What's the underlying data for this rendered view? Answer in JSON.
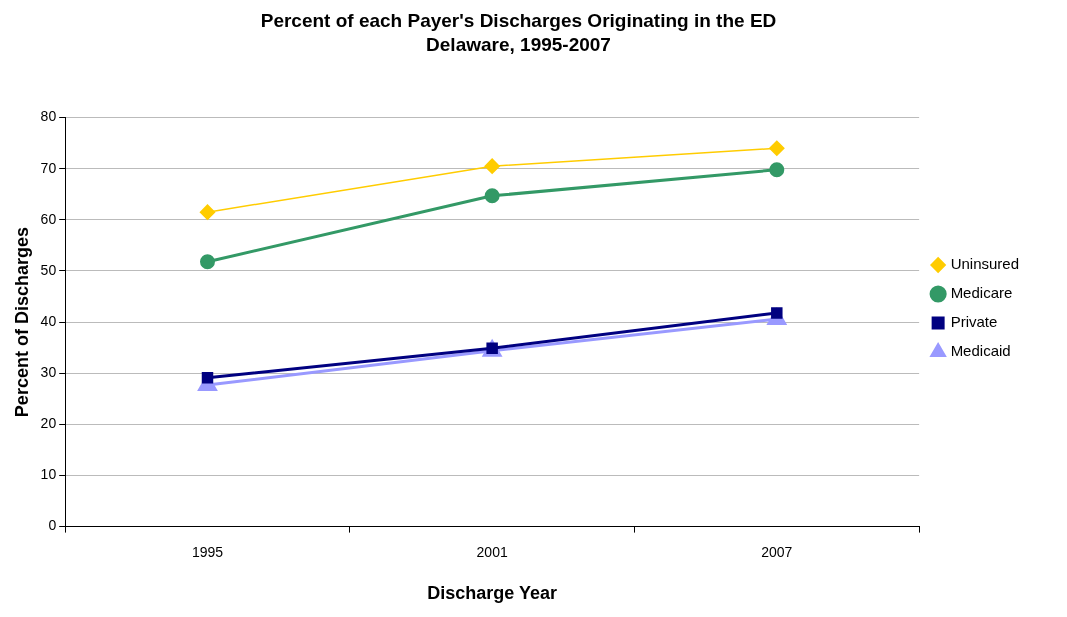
{
  "chart_data": {
    "type": "line",
    "title": "Percent of each Payer's Discharges Originating in the ED",
    "subtitle": "Delaware, 1995-2007",
    "xlabel": "Discharge Year",
    "ylabel": "Percent of Discharges",
    "categories": [
      "1995",
      "2001",
      "2007"
    ],
    "series": [
      {
        "name": "Uninsured",
        "color": "#ffcc00",
        "marker": "diamond",
        "values": [
          61.5,
          70.5,
          74
        ]
      },
      {
        "name": "Medicare",
        "color": "#339966",
        "marker": "circle",
        "values": [
          51.8,
          64.7,
          69.8
        ]
      },
      {
        "name": "Private",
        "color": "#000080",
        "marker": "square",
        "values": [
          29.1,
          34.9,
          41.8
        ]
      },
      {
        "name": "Medicaid",
        "color": "#9999ff",
        "marker": "triangle",
        "values": [
          27.7,
          34.4,
          40.6
        ]
      }
    ],
    "ylim": [
      0,
      80
    ],
    "yticks": [
      0,
      10,
      20,
      30,
      40,
      50,
      60,
      70,
      80
    ],
    "grid": "y",
    "legend": "right"
  }
}
